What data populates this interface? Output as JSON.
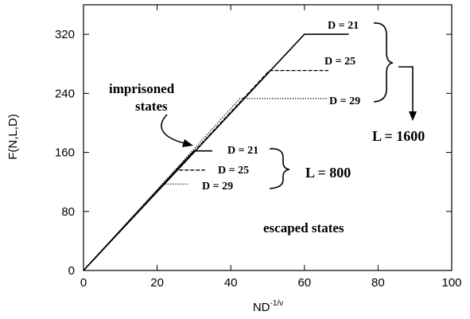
{
  "chart_data": {
    "type": "line",
    "title": "",
    "xlabel": "ND",
    "xlabel_superscript": "-1/ν",
    "ylabel": "F(N,L,D)",
    "xlim": [
      0,
      100
    ],
    "ylim": [
      0,
      360
    ],
    "x_ticks": [
      0,
      20,
      40,
      60,
      80,
      100
    ],
    "y_ticks": [
      0,
      80,
      160,
      240,
      320
    ],
    "grid": false,
    "legend": "none",
    "series": [
      {
        "style": "solid",
        "points": [
          [
            0,
            0
          ],
          [
            60,
            320
          ],
          [
            72,
            320
          ]
        ]
      },
      {
        "style": "dashed",
        "points": [
          [
            0,
            0
          ],
          [
            50.5,
            271
          ],
          [
            66.5,
            271
          ]
        ]
      },
      {
        "style": "dotted",
        "points": [
          [
            0,
            0
          ],
          [
            42.5,
            233
          ],
          [
            66.5,
            233
          ]
        ]
      },
      {
        "style": "solid",
        "points": [
          [
            0,
            0
          ],
          [
            30,
            162
          ],
          [
            35,
            162
          ]
        ]
      },
      {
        "style": "dashed",
        "points": [
          [
            0,
            0
          ],
          [
            25.5,
            136
          ],
          [
            33,
            136
          ]
        ]
      },
      {
        "style": "dotted",
        "points": [
          [
            0,
            0
          ],
          [
            21.5,
            117
          ],
          [
            28.5,
            117
          ]
        ]
      }
    ],
    "annotations": {
      "d21_high": "D = 21",
      "d25_high": "D = 25",
      "d29_high": "D = 29",
      "l1600": "L = 1600",
      "d21_low": "D = 21",
      "d25_low": "D = 25",
      "d29_low": "D = 29",
      "l800": "L = 800",
      "imprisoned_1": "imprisoned",
      "imprisoned_2": "states",
      "escaped": "escaped states"
    }
  }
}
